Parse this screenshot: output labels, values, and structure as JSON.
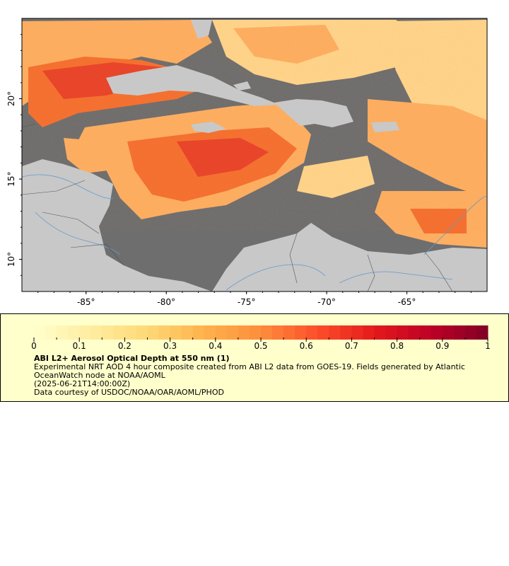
{
  "map": {
    "lat_range": [
      8,
      25
    ],
    "lon_range": [
      -89,
      -60
    ],
    "lat_ticks": [
      {
        "value": 20,
        "label": "20°"
      },
      {
        "value": 15,
        "label": "15°"
      },
      {
        "value": 10,
        "label": "10°"
      }
    ],
    "lon_ticks": [
      {
        "value": -85,
        "label": "-85°"
      },
      {
        "value": -80,
        "label": "-80°"
      },
      {
        "value": -75,
        "label": "-75°"
      },
      {
        "value": -70,
        "label": "-70°"
      },
      {
        "value": -65,
        "label": "-65°"
      }
    ],
    "colors": {
      "no_data_ocean": "#6e6e6e",
      "land": "#c8c8c8",
      "rivers": "#6699cc",
      "borders": "#555555"
    }
  },
  "colorbar": {
    "min": 0,
    "max": 1,
    "ticks": [
      {
        "value": 0,
        "label": "0"
      },
      {
        "value": 0.1,
        "label": "0.1"
      },
      {
        "value": 0.2,
        "label": "0.2"
      },
      {
        "value": 0.3,
        "label": "0.3"
      },
      {
        "value": 0.4,
        "label": "0.4"
      },
      {
        "value": 0.5,
        "label": "0.5"
      },
      {
        "value": 0.6,
        "label": "0.6"
      },
      {
        "value": 0.7,
        "label": "0.7"
      },
      {
        "value": 0.8,
        "label": "0.8"
      },
      {
        "value": 0.9,
        "label": "0.9"
      },
      {
        "value": 1,
        "label": "1"
      }
    ],
    "palette": [
      "#ffffcc",
      "#ffeda0",
      "#fed976",
      "#feb24c",
      "#fd8d3c",
      "#fc4e2a",
      "#e31a1c",
      "#bd0026",
      "#800026"
    ]
  },
  "legend": {
    "title": "ABI L2+ Aerosol Optical Depth at 550 nm (1)",
    "description": "Experimental NRT AOD 4 hour composite created from ABI L2 data from GOES-19. Fields generated by Atlantic OceanWatch node at NOAA/AOML",
    "time": "(2025-06-21T14:00:00Z)",
    "credit": "Data courtesy of USDOC/NOAA/OAR/AOML/PHOD"
  }
}
